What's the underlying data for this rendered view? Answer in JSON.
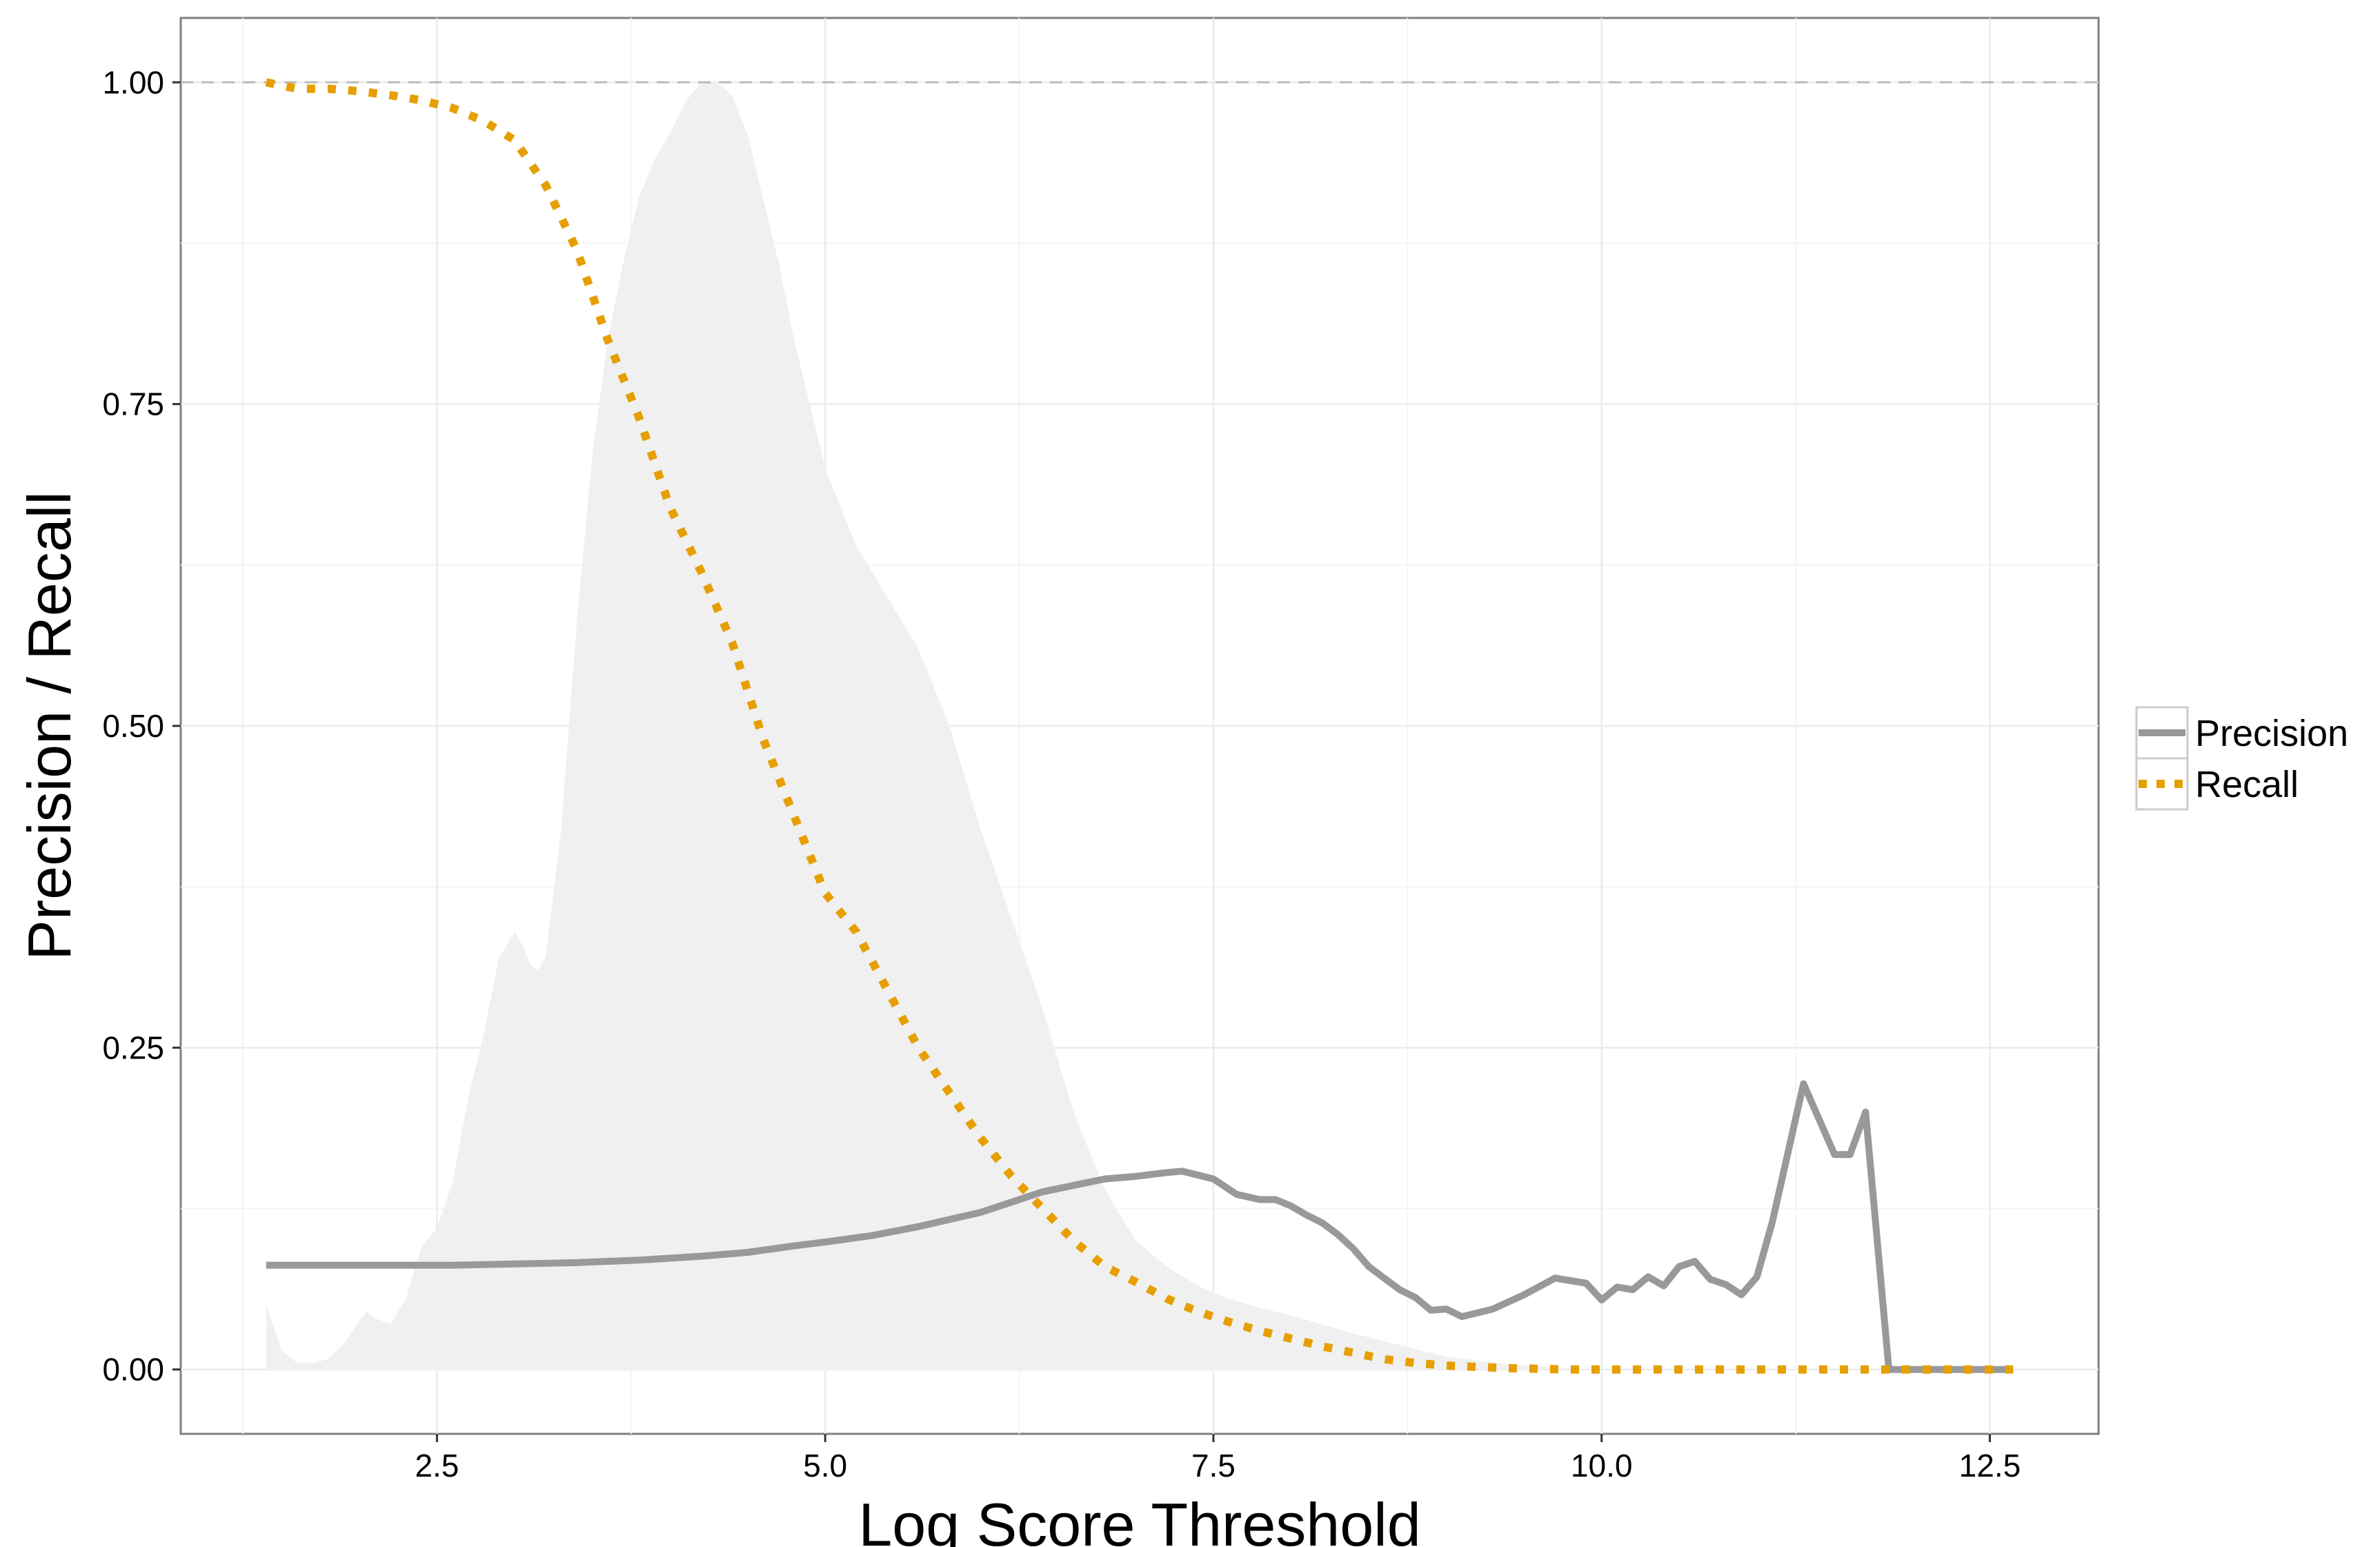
{
  "chart_data": {
    "type": "line",
    "title": "",
    "xlabel": "Log Score Threshold",
    "ylabel": "Precision / Recall",
    "xlim": [
      0.85,
      13.2
    ],
    "ylim": [
      -0.05,
      1.05
    ],
    "x_ticks": [
      2.5,
      5.0,
      7.5,
      10.0,
      12.5
    ],
    "x_tick_labels": [
      "2.5",
      "5.0",
      "7.5",
      "10.0",
      "12.5"
    ],
    "y_ticks": [
      0.0,
      0.25,
      0.5,
      0.75,
      1.0
    ],
    "y_tick_labels": [
      "0.00",
      "0.25",
      "0.50",
      "0.75",
      "1.00"
    ],
    "grid": true,
    "reference_line": {
      "y": 1.0,
      "style": "dashed",
      "color": "#bbbbbb"
    },
    "legend": {
      "position": "right"
    },
    "series": [
      {
        "name": "Precision",
        "style": "solid",
        "color": "#999999",
        "x": [
          1.4,
          1.8,
          2.2,
          2.6,
          3.0,
          3.4,
          3.8,
          4.2,
          4.5,
          4.8,
          5.0,
          5.3,
          5.6,
          6.0,
          6.4,
          6.8,
          7.0,
          7.2,
          7.3,
          7.5,
          7.65,
          7.8,
          7.9,
          8.0,
          8.1,
          8.2,
          8.3,
          8.4,
          8.5,
          8.7,
          8.8,
          8.9,
          9.0,
          9.1,
          9.3,
          9.5,
          9.7,
          9.9,
          10.0,
          10.1,
          10.2,
          10.3,
          10.4,
          10.5,
          10.6,
          10.7,
          10.8,
          10.9,
          11.0,
          11.1,
          11.3,
          11.5,
          11.6,
          11.7,
          11.85,
          12.0,
          12.3,
          12.65
        ],
        "y": [
          0.081,
          0.081,
          0.081,
          0.081,
          0.082,
          0.083,
          0.085,
          0.088,
          0.091,
          0.096,
          0.099,
          0.104,
          0.111,
          0.122,
          0.138,
          0.148,
          0.15,
          0.153,
          0.154,
          0.148,
          0.136,
          0.132,
          0.132,
          0.127,
          0.12,
          0.114,
          0.105,
          0.094,
          0.08,
          0.062,
          0.056,
          0.046,
          0.047,
          0.041,
          0.047,
          0.058,
          0.071,
          0.067,
          0.054,
          0.064,
          0.062,
          0.072,
          0.065,
          0.08,
          0.084,
          0.07,
          0.066,
          0.058,
          0.072,
          0.115,
          0.222,
          0.167,
          0.167,
          0.2,
          0.0,
          0.0,
          0.0,
          0.0
        ]
      },
      {
        "name": "Recall",
        "style": "dotted",
        "color": "#e69f00",
        "x": [
          1.4,
          1.6,
          1.8,
          2.0,
          2.2,
          2.4,
          2.6,
          2.8,
          3.0,
          3.2,
          3.4,
          3.6,
          3.8,
          4.0,
          4.2,
          4.4,
          4.6,
          4.8,
          5.0,
          5.2,
          5.4,
          5.6,
          5.8,
          6.0,
          6.2,
          6.4,
          6.6,
          6.8,
          7.0,
          7.2,
          7.4,
          7.6,
          7.8,
          8.0,
          8.2,
          8.4,
          8.6,
          8.8,
          9.0,
          9.2,
          9.4,
          9.6,
          9.8,
          10.0,
          10.5,
          11.0,
          11.5,
          12.0,
          12.65
        ],
        "y": [
          1.0,
          0.995,
          0.995,
          0.993,
          0.99,
          0.986,
          0.98,
          0.97,
          0.955,
          0.92,
          0.87,
          0.8,
          0.74,
          0.67,
          0.62,
          0.565,
          0.49,
          0.43,
          0.37,
          0.34,
          0.295,
          0.25,
          0.215,
          0.18,
          0.15,
          0.125,
          0.1,
          0.08,
          0.068,
          0.055,
          0.045,
          0.037,
          0.03,
          0.024,
          0.018,
          0.013,
          0.008,
          0.005,
          0.003,
          0.002,
          0.001,
          0.0005,
          0.0,
          0.0,
          0.0,
          0.0,
          0.0,
          0.0,
          0.0
        ]
      }
    ],
    "density_background": {
      "color": "#f0f0f0",
      "x": [
        1.4,
        1.5,
        1.6,
        1.7,
        1.8,
        1.9,
        2.0,
        2.05,
        2.1,
        2.2,
        2.3,
        2.4,
        2.5,
        2.6,
        2.7,
        2.8,
        2.9,
        3.0,
        3.05,
        3.1,
        3.15,
        3.2,
        3.3,
        3.4,
        3.5,
        3.6,
        3.7,
        3.8,
        3.9,
        4.0,
        4.1,
        4.2,
        4.3,
        4.4,
        4.5,
        4.6,
        4.7,
        4.8,
        4.9,
        5.0,
        5.2,
        5.4,
        5.6,
        5.8,
        6.0,
        6.2,
        6.4,
        6.6,
        6.8,
        7.0,
        7.2,
        7.4,
        7.6,
        7.8,
        8.0,
        8.2,
        8.4,
        8.6,
        8.8,
        9.0,
        9.2,
        9.4,
        9.6,
        9.8,
        10.0
      ],
      "y": [
        0.05,
        0.015,
        0.005,
        0.005,
        0.008,
        0.02,
        0.038,
        0.045,
        0.04,
        0.035,
        0.055,
        0.095,
        0.11,
        0.145,
        0.21,
        0.26,
        0.32,
        0.34,
        0.33,
        0.315,
        0.31,
        0.32,
        0.42,
        0.58,
        0.71,
        0.8,
        0.86,
        0.91,
        0.94,
        0.96,
        0.985,
        1.0,
        1.0,
        0.99,
        0.96,
        0.91,
        0.86,
        0.8,
        0.75,
        0.7,
        0.64,
        0.6,
        0.56,
        0.5,
        0.42,
        0.35,
        0.28,
        0.2,
        0.14,
        0.1,
        0.08,
        0.065,
        0.055,
        0.048,
        0.042,
        0.035,
        0.028,
        0.022,
        0.016,
        0.01,
        0.007,
        0.004,
        0.002,
        0.001,
        0.0
      ]
    }
  }
}
